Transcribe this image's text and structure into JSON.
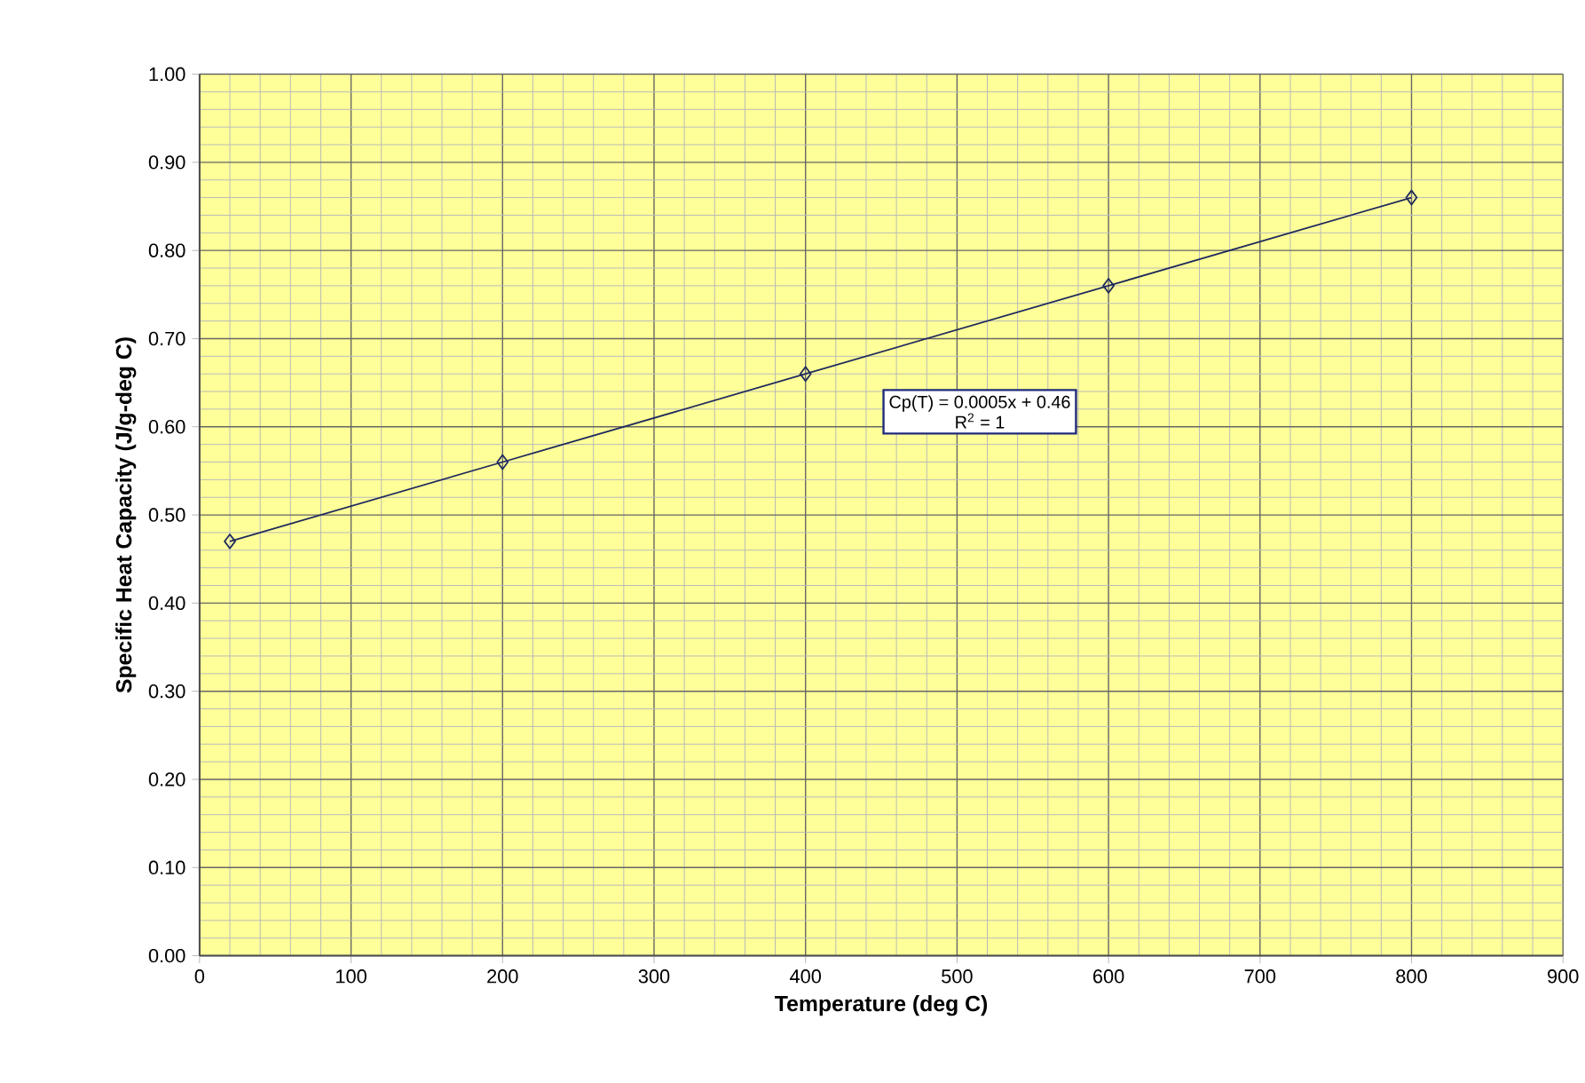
{
  "chart_data": {
    "type": "line",
    "xlabel": "Temperature (deg C)",
    "ylabel": "Specific Heat Capacity (J/g-deg C)",
    "x": [
      20,
      200,
      400,
      600,
      800
    ],
    "series": [
      {
        "color": "#1f2a5c",
        "values": [
          0.47,
          0.56,
          0.66,
          0.76,
          0.86
        ]
      }
    ],
    "xlim": [
      0,
      900
    ],
    "xticks": [
      0,
      100,
      200,
      300,
      400,
      500,
      600,
      700,
      800,
      900
    ],
    "ylim": [
      0,
      1
    ],
    "yticks": [
      {
        "value": 0,
        "label": "0.00"
      },
      {
        "value": 0.1,
        "label": "0.10"
      },
      {
        "value": 0.2,
        "label": "0.20"
      },
      {
        "value": 0.3,
        "label": "0.30"
      },
      {
        "value": 0.4,
        "label": "0.40"
      },
      {
        "value": 0.5,
        "label": "0.50"
      },
      {
        "value": 0.6,
        "label": "0.60"
      },
      {
        "value": 0.7,
        "label": "0.70"
      },
      {
        "value": 0.8,
        "label": "0.80"
      },
      {
        "value": 0.9,
        "label": "0.90"
      },
      {
        "value": 1,
        "label": "1.00"
      }
    ],
    "annotations": [
      "Cp(T) = 0.0005x + 0.46",
      "R$^{2}$ = 1"
    ],
    "grid": true,
    "marker": "diamond",
    "line_style": "solid"
  }
}
